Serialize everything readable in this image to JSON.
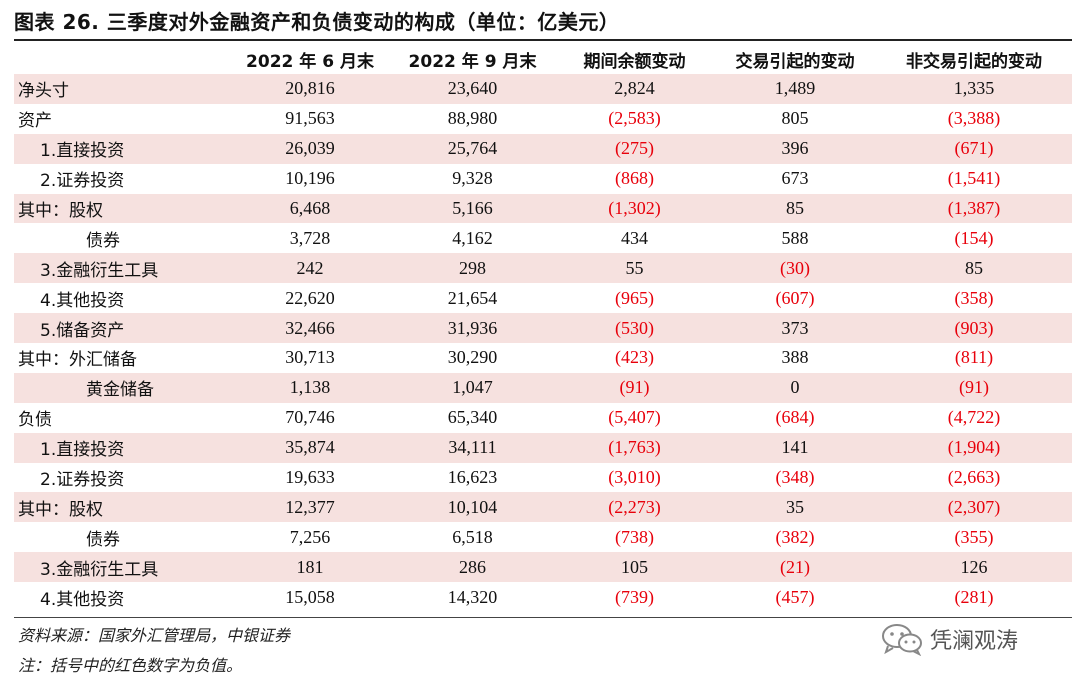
{
  "title": "图表 26. 三季度对外金融资产和负债变动的构成（单位：亿美元）",
  "table": {
    "headers": [
      "",
      "2022 年 6 月末",
      "2022 年 9 月末",
      "期间余额变动",
      "交易引起的变动",
      "非交易引起的变动"
    ],
    "rows": [
      {
        "label": "净头寸",
        "indent": 0,
        "shaded": true,
        "cells": [
          {
            "text": "20,816",
            "neg": false
          },
          {
            "text": "23,640",
            "neg": false
          },
          {
            "text": "2,824",
            "neg": false
          },
          {
            "text": "1,489",
            "neg": false
          },
          {
            "text": "1,335",
            "neg": false
          }
        ]
      },
      {
        "label": "资产",
        "indent": 0,
        "shaded": false,
        "cells": [
          {
            "text": "91,563",
            "neg": false
          },
          {
            "text": "88,980",
            "neg": false
          },
          {
            "text": "(2,583)",
            "neg": true
          },
          {
            "text": "805",
            "neg": false
          },
          {
            "text": "(3,388)",
            "neg": true
          }
        ]
      },
      {
        "label": "1.直接投资",
        "indent": 1,
        "shaded": true,
        "cells": [
          {
            "text": "26,039",
            "neg": false
          },
          {
            "text": "25,764",
            "neg": false
          },
          {
            "text": "(275)",
            "neg": true
          },
          {
            "text": "396",
            "neg": false
          },
          {
            "text": "(671)",
            "neg": true
          }
        ]
      },
      {
        "label": "2.证券投资",
        "indent": 1,
        "shaded": false,
        "cells": [
          {
            "text": "10,196",
            "neg": false
          },
          {
            "text": "9,328",
            "neg": false
          },
          {
            "text": "(868)",
            "neg": true
          },
          {
            "text": "673",
            "neg": false
          },
          {
            "text": "(1,541)",
            "neg": true
          }
        ]
      },
      {
        "label": "其中：股权",
        "indent": 0,
        "shaded": true,
        "cells": [
          {
            "text": "6,468",
            "neg": false
          },
          {
            "text": "5,166",
            "neg": false
          },
          {
            "text": "(1,302)",
            "neg": true
          },
          {
            "text": "85",
            "neg": false
          },
          {
            "text": "(1,387)",
            "neg": true
          }
        ]
      },
      {
        "label": "债券",
        "indent": 2,
        "shaded": false,
        "cells": [
          {
            "text": "3,728",
            "neg": false
          },
          {
            "text": "4,162",
            "neg": false
          },
          {
            "text": "434",
            "neg": false
          },
          {
            "text": "588",
            "neg": false
          },
          {
            "text": "(154)",
            "neg": true
          }
        ]
      },
      {
        "label": "3.金融衍生工具",
        "indent": 1,
        "shaded": true,
        "cells": [
          {
            "text": "242",
            "neg": false
          },
          {
            "text": "298",
            "neg": false
          },
          {
            "text": "55",
            "neg": false
          },
          {
            "text": "(30)",
            "neg": true
          },
          {
            "text": "85",
            "neg": false
          }
        ]
      },
      {
        "label": "4.其他投资",
        "indent": 1,
        "shaded": false,
        "cells": [
          {
            "text": "22,620",
            "neg": false
          },
          {
            "text": "21,654",
            "neg": false
          },
          {
            "text": "(965)",
            "neg": true
          },
          {
            "text": "(607)",
            "neg": true
          },
          {
            "text": "(358)",
            "neg": true
          }
        ]
      },
      {
        "label": "5.储备资产",
        "indent": 1,
        "shaded": true,
        "cells": [
          {
            "text": "32,466",
            "neg": false
          },
          {
            "text": "31,936",
            "neg": false
          },
          {
            "text": "(530)",
            "neg": true
          },
          {
            "text": "373",
            "neg": false
          },
          {
            "text": "(903)",
            "neg": true
          }
        ]
      },
      {
        "label": "其中：外汇储备",
        "indent": 0,
        "shaded": false,
        "cells": [
          {
            "text": "30,713",
            "neg": false
          },
          {
            "text": "30,290",
            "neg": false
          },
          {
            "text": "(423)",
            "neg": true
          },
          {
            "text": "388",
            "neg": false
          },
          {
            "text": "(811)",
            "neg": true
          }
        ]
      },
      {
        "label": "黄金储备",
        "indent": 2,
        "shaded": true,
        "cells": [
          {
            "text": "1,138",
            "neg": false
          },
          {
            "text": "1,047",
            "neg": false
          },
          {
            "text": "(91)",
            "neg": true
          },
          {
            "text": "0",
            "neg": false
          },
          {
            "text": "(91)",
            "neg": true
          }
        ]
      },
      {
        "label": "负债",
        "indent": 0,
        "shaded": false,
        "cells": [
          {
            "text": "70,746",
            "neg": false
          },
          {
            "text": "65,340",
            "neg": false
          },
          {
            "text": "(5,407)",
            "neg": true
          },
          {
            "text": "(684)",
            "neg": true
          },
          {
            "text": "(4,722)",
            "neg": true
          }
        ]
      },
      {
        "label": "1.直接投资",
        "indent": 1,
        "shaded": true,
        "cells": [
          {
            "text": "35,874",
            "neg": false
          },
          {
            "text": "34,111",
            "neg": false
          },
          {
            "text": "(1,763)",
            "neg": true
          },
          {
            "text": "141",
            "neg": false
          },
          {
            "text": "(1,904)",
            "neg": true
          }
        ]
      },
      {
        "label": "2.证券投资",
        "indent": 1,
        "shaded": false,
        "cells": [
          {
            "text": "19,633",
            "neg": false
          },
          {
            "text": "16,623",
            "neg": false
          },
          {
            "text": "(3,010)",
            "neg": true
          },
          {
            "text": "(348)",
            "neg": true
          },
          {
            "text": "(2,663)",
            "neg": true
          }
        ]
      },
      {
        "label": "其中：股权",
        "indent": 0,
        "shaded": true,
        "cells": [
          {
            "text": "12,377",
            "neg": false
          },
          {
            "text": "10,104",
            "neg": false
          },
          {
            "text": "(2,273)",
            "neg": true
          },
          {
            "text": "35",
            "neg": false
          },
          {
            "text": "(2,307)",
            "neg": true
          }
        ]
      },
      {
        "label": "债券",
        "indent": 2,
        "shaded": false,
        "cells": [
          {
            "text": "7,256",
            "neg": false
          },
          {
            "text": "6,518",
            "neg": false
          },
          {
            "text": "(738)",
            "neg": true
          },
          {
            "text": "(382)",
            "neg": true
          },
          {
            "text": "(355)",
            "neg": true
          }
        ]
      },
      {
        "label": "3.金融衍生工具",
        "indent": 1,
        "shaded": true,
        "cells": [
          {
            "text": "181",
            "neg": false
          },
          {
            "text": "286",
            "neg": false
          },
          {
            "text": "105",
            "neg": false
          },
          {
            "text": "(21)",
            "neg": true
          },
          {
            "text": "126",
            "neg": false
          }
        ]
      },
      {
        "label": "4.其他投资",
        "indent": 1,
        "shaded": false,
        "cells": [
          {
            "text": "15,058",
            "neg": false
          },
          {
            "text": "14,320",
            "neg": false
          },
          {
            "text": "(739)",
            "neg": true
          },
          {
            "text": "(457)",
            "neg": true
          },
          {
            "text": "(281)",
            "neg": true
          }
        ]
      }
    ]
  },
  "source": "资料来源：国家外汇管理局，中银证券",
  "note": "注：括号中的红色数字为负值。",
  "watermark": {
    "icon": "wechat-icon",
    "text": "凭澜观涛"
  },
  "colors": {
    "negative": "#e8000b",
    "shade": "#f6e1df"
  }
}
